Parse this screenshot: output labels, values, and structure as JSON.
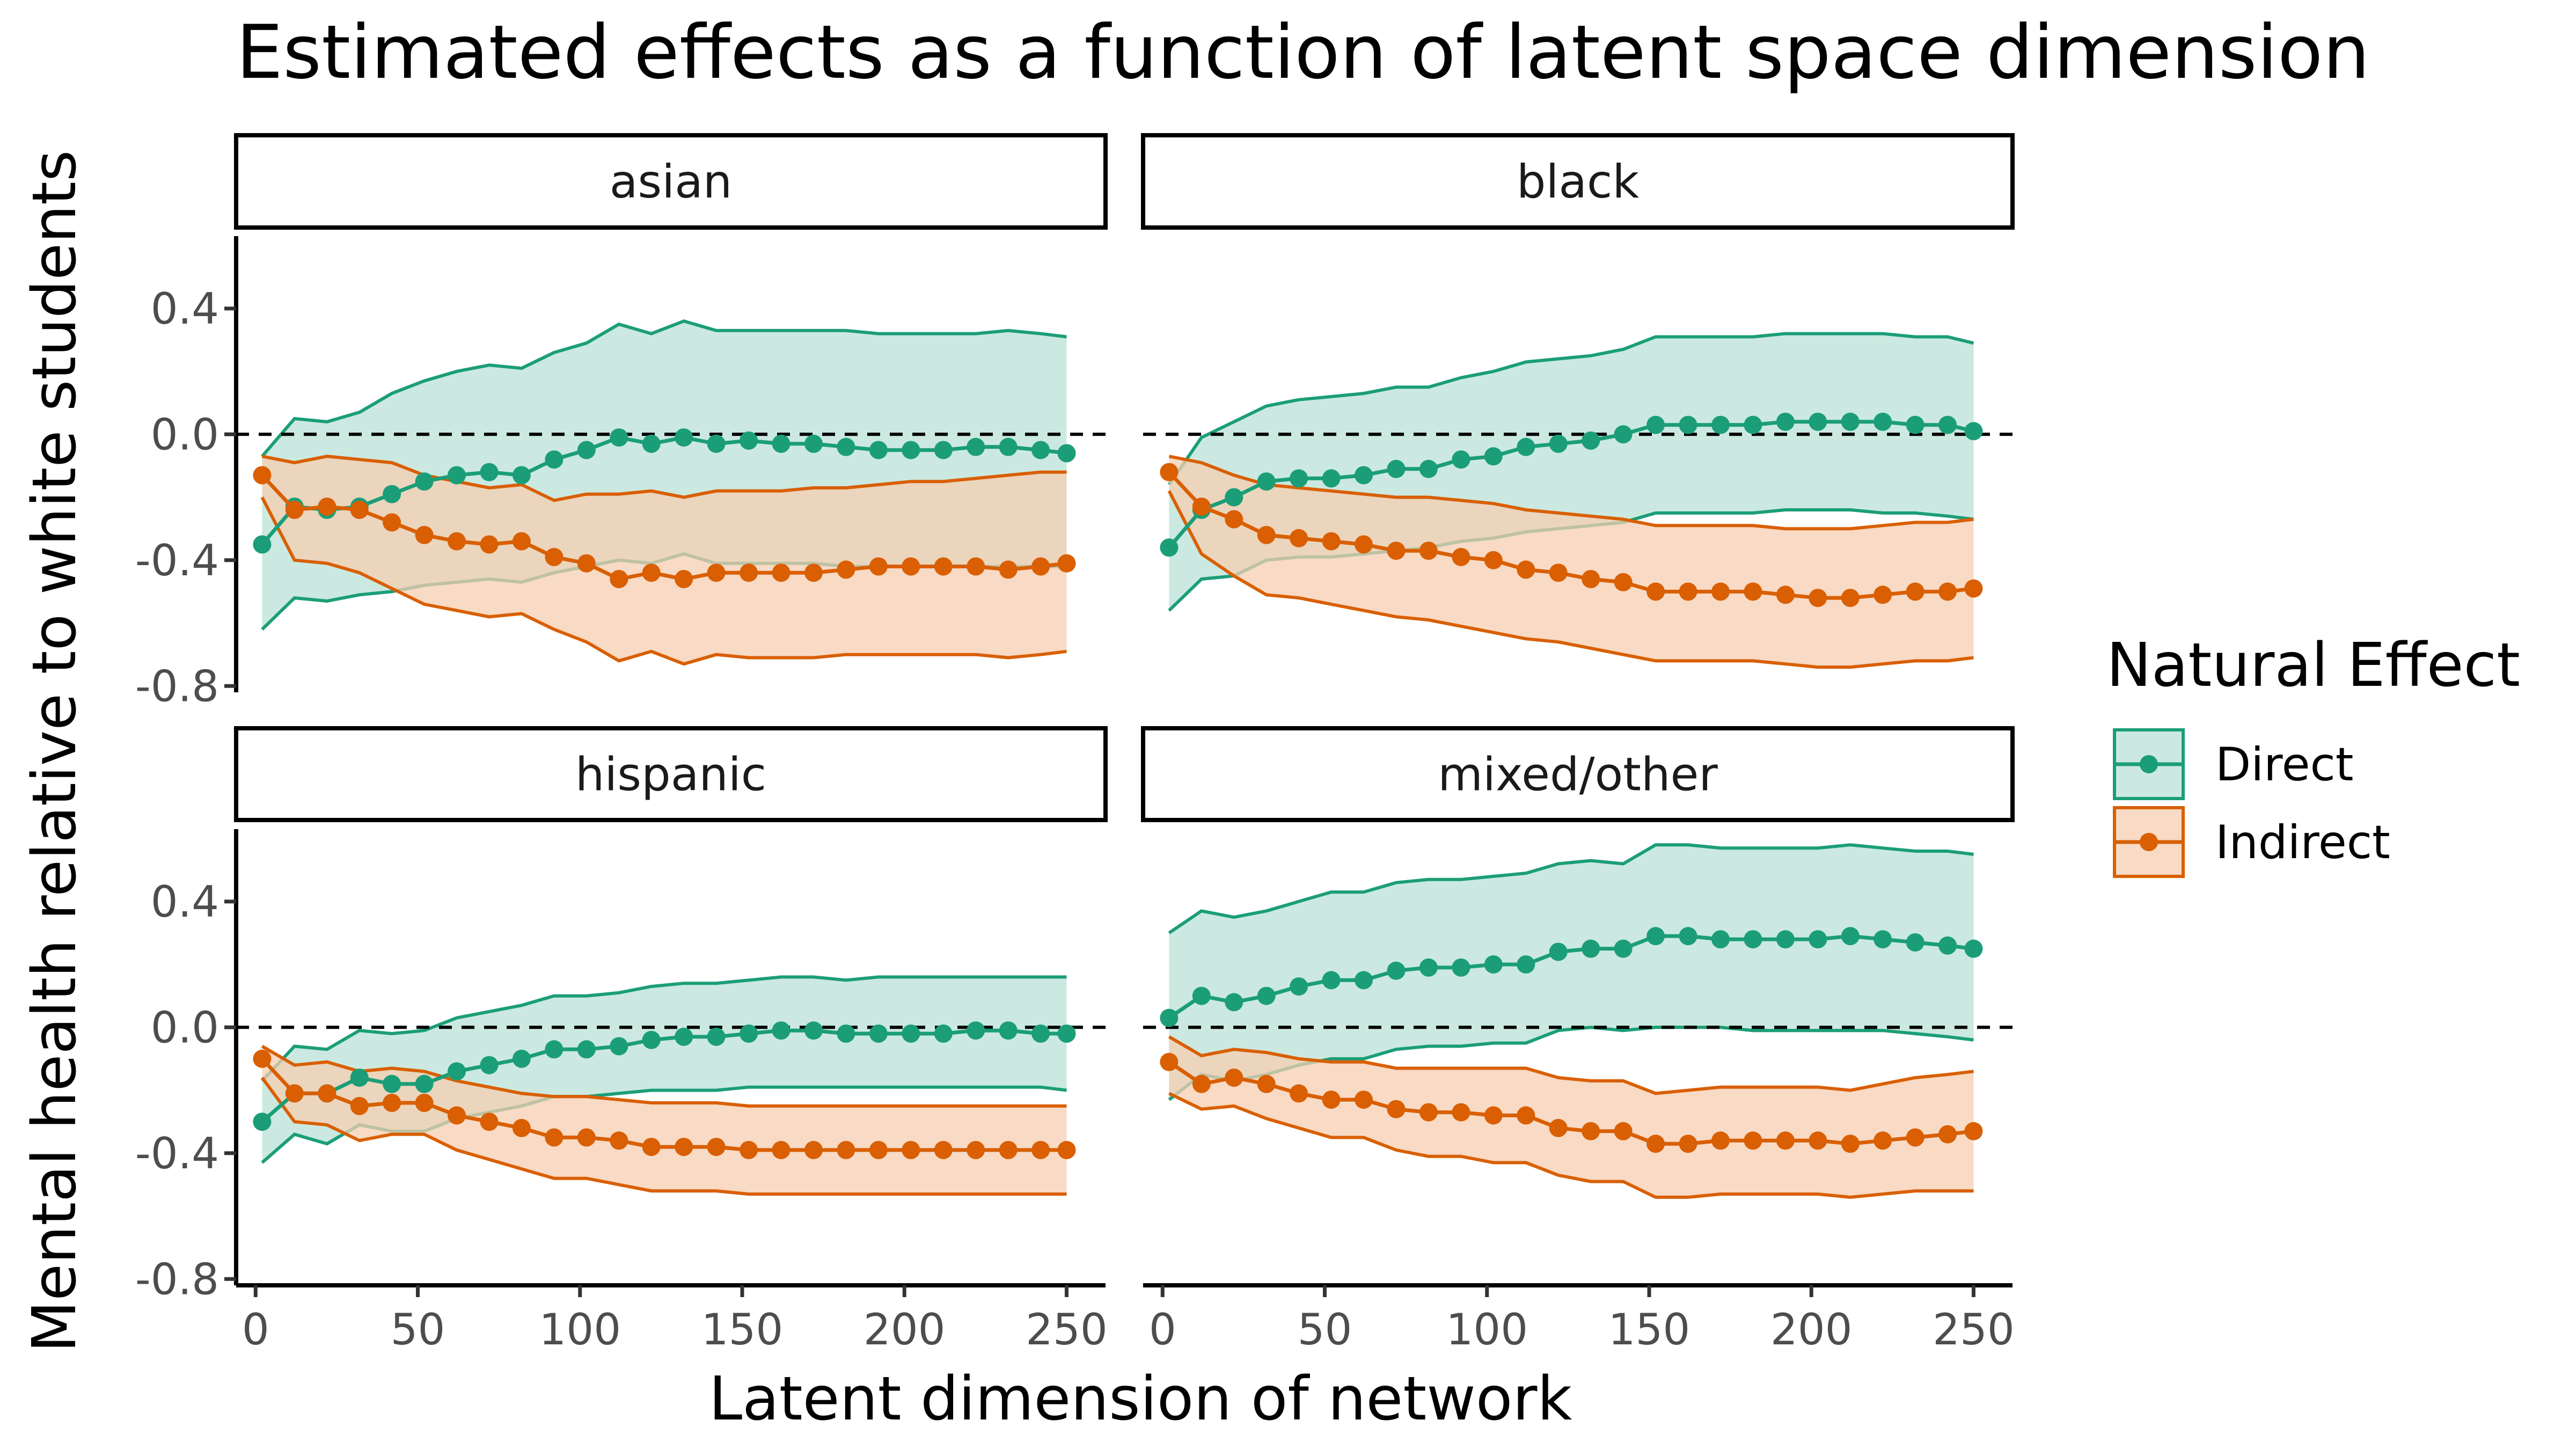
{
  "chart_data": {
    "type": "line",
    "title": "Estimated effects as a function of latent space dimension",
    "xlabel": "Latent dimension of network",
    "ylabel": "Mental health relative to white students",
    "xlim": [
      -6,
      262
    ],
    "ylim": [
      -0.82,
      0.63
    ],
    "x_ticks": [
      0,
      50,
      100,
      150,
      200,
      250
    ],
    "x_tick_labels": [
      "0",
      "50",
      "100",
      "150",
      "200",
      "250"
    ],
    "y_ticks": [
      -0.8,
      -0.4,
      0.0,
      0.4
    ],
    "y_tick_labels": [
      "-0.8",
      "-0.4",
      "0.0",
      "0.4"
    ],
    "reference_line": 0.0,
    "legend": {
      "title": "Natural Effect",
      "placement": "right",
      "entries": [
        "Direct",
        "Indirect"
      ]
    },
    "colors": {
      "Direct": "#1b9e77",
      "Indirect": "#d95f02",
      "Direct_fill": "#b9e2d6",
      "Indirect_fill": "#f5cdb1",
      "reference": "#000000"
    },
    "x": [
      2,
      12,
      22,
      32,
      42,
      52,
      62,
      72,
      82,
      92,
      102,
      112,
      122,
      132,
      142,
      152,
      162,
      172,
      182,
      192,
      202,
      212,
      222,
      232,
      242,
      250
    ],
    "panels": [
      {
        "label": "asian",
        "series": [
          {
            "name": "Direct",
            "values": [
              -0.35,
              -0.23,
              -0.24,
              -0.23,
              -0.19,
              -0.15,
              -0.13,
              -0.12,
              -0.13,
              -0.08,
              -0.05,
              -0.01,
              -0.03,
              -0.01,
              -0.03,
              -0.02,
              -0.03,
              -0.03,
              -0.04,
              -0.05,
              -0.05,
              -0.05,
              -0.04,
              -0.04,
              -0.05,
              -0.06
            ],
            "lower": [
              -0.62,
              -0.52,
              -0.53,
              -0.51,
              -0.5,
              -0.48,
              -0.47,
              -0.46,
              -0.47,
              -0.44,
              -0.42,
              -0.4,
              -0.41,
              -0.38,
              -0.41,
              -0.41,
              -0.41,
              -0.41,
              -0.42,
              -0.42,
              -0.42,
              -0.42,
              -0.42,
              -0.42,
              -0.42,
              -0.42
            ],
            "upper": [
              -0.07,
              0.05,
              0.04,
              0.07,
              0.13,
              0.17,
              0.2,
              0.22,
              0.21,
              0.26,
              0.29,
              0.35,
              0.32,
              0.36,
              0.33,
              0.33,
              0.33,
              0.33,
              0.33,
              0.32,
              0.32,
              0.32,
              0.32,
              0.33,
              0.32,
              0.31
            ]
          },
          {
            "name": "Indirect",
            "values": [
              -0.13,
              -0.24,
              -0.23,
              -0.24,
              -0.28,
              -0.32,
              -0.34,
              -0.35,
              -0.34,
              -0.39,
              -0.41,
              -0.46,
              -0.44,
              -0.46,
              -0.44,
              -0.44,
              -0.44,
              -0.44,
              -0.43,
              -0.42,
              -0.42,
              -0.42,
              -0.42,
              -0.43,
              -0.42,
              -0.41
            ],
            "lower": [
              -0.2,
              -0.4,
              -0.41,
              -0.44,
              -0.49,
              -0.54,
              -0.56,
              -0.58,
              -0.57,
              -0.62,
              -0.66,
              -0.72,
              -0.69,
              -0.73,
              -0.7,
              -0.71,
              -0.71,
              -0.71,
              -0.7,
              -0.7,
              -0.7,
              -0.7,
              -0.7,
              -0.71,
              -0.7,
              -0.69
            ],
            "upper": [
              -0.07,
              -0.09,
              -0.07,
              -0.08,
              -0.09,
              -0.13,
              -0.15,
              -0.17,
              -0.16,
              -0.21,
              -0.19,
              -0.19,
              -0.18,
              -0.2,
              -0.18,
              -0.18,
              -0.18,
              -0.17,
              -0.17,
              -0.16,
              -0.15,
              -0.15,
              -0.14,
              -0.13,
              -0.12,
              -0.12
            ]
          }
        ]
      },
      {
        "label": "black",
        "series": [
          {
            "name": "Direct",
            "values": [
              -0.36,
              -0.24,
              -0.2,
              -0.15,
              -0.14,
              -0.14,
              -0.13,
              -0.11,
              -0.11,
              -0.08,
              -0.07,
              -0.04,
              -0.03,
              -0.02,
              0.0,
              0.03,
              0.03,
              0.03,
              0.03,
              0.04,
              0.04,
              0.04,
              0.04,
              0.03,
              0.03,
              0.01
            ],
            "lower": [
              -0.56,
              -0.46,
              -0.45,
              -0.4,
              -0.39,
              -0.39,
              -0.38,
              -0.37,
              -0.36,
              -0.34,
              -0.33,
              -0.31,
              -0.3,
              -0.29,
              -0.28,
              -0.25,
              -0.25,
              -0.25,
              -0.25,
              -0.24,
              -0.24,
              -0.24,
              -0.25,
              -0.25,
              -0.26,
              -0.27
            ],
            "upper": [
              -0.16,
              -0.01,
              0.04,
              0.09,
              0.11,
              0.12,
              0.13,
              0.15,
              0.15,
              0.18,
              0.2,
              0.23,
              0.24,
              0.25,
              0.27,
              0.31,
              0.31,
              0.31,
              0.31,
              0.32,
              0.32,
              0.32,
              0.32,
              0.31,
              0.31,
              0.29
            ]
          },
          {
            "name": "Indirect",
            "values": [
              -0.12,
              -0.23,
              -0.27,
              -0.32,
              -0.33,
              -0.34,
              -0.35,
              -0.37,
              -0.37,
              -0.39,
              -0.4,
              -0.43,
              -0.44,
              -0.46,
              -0.47,
              -0.5,
              -0.5,
              -0.5,
              -0.5,
              -0.51,
              -0.52,
              -0.52,
              -0.51,
              -0.5,
              -0.5,
              -0.49
            ],
            "lower": [
              -0.18,
              -0.38,
              -0.45,
              -0.51,
              -0.52,
              -0.54,
              -0.56,
              -0.58,
              -0.59,
              -0.61,
              -0.63,
              -0.65,
              -0.66,
              -0.68,
              -0.7,
              -0.72,
              -0.72,
              -0.72,
              -0.72,
              -0.73,
              -0.74,
              -0.74,
              -0.73,
              -0.72,
              -0.72,
              -0.71
            ],
            "upper": [
              -0.07,
              -0.09,
              -0.13,
              -0.16,
              -0.17,
              -0.18,
              -0.19,
              -0.2,
              -0.2,
              -0.21,
              -0.22,
              -0.24,
              -0.25,
              -0.26,
              -0.27,
              -0.29,
              -0.29,
              -0.29,
              -0.29,
              -0.3,
              -0.3,
              -0.3,
              -0.29,
              -0.28,
              -0.28,
              -0.27
            ]
          }
        ]
      },
      {
        "label": "hispanic",
        "series": [
          {
            "name": "Direct",
            "values": [
              -0.3,
              -0.21,
              -0.21,
              -0.16,
              -0.18,
              -0.18,
              -0.14,
              -0.12,
              -0.1,
              -0.07,
              -0.07,
              -0.06,
              -0.04,
              -0.03,
              -0.03,
              -0.02,
              -0.01,
              -0.01,
              -0.02,
              -0.02,
              -0.02,
              -0.02,
              -0.01,
              -0.01,
              -0.02,
              -0.02
            ],
            "lower": [
              -0.43,
              -0.34,
              -0.37,
              -0.31,
              -0.33,
              -0.33,
              -0.29,
              -0.27,
              -0.25,
              -0.22,
              -0.22,
              -0.21,
              -0.2,
              -0.2,
              -0.2,
              -0.19,
              -0.19,
              -0.19,
              -0.19,
              -0.19,
              -0.19,
              -0.19,
              -0.19,
              -0.19,
              -0.19,
              -0.2
            ],
            "upper": [
              -0.17,
              -0.06,
              -0.07,
              -0.01,
              -0.02,
              -0.01,
              0.03,
              0.05,
              0.07,
              0.1,
              0.1,
              0.11,
              0.13,
              0.14,
              0.14,
              0.15,
              0.16,
              0.16,
              0.15,
              0.16,
              0.16,
              0.16,
              0.16,
              0.16,
              0.16,
              0.16
            ]
          },
          {
            "name": "Indirect",
            "values": [
              -0.1,
              -0.21,
              -0.21,
              -0.25,
              -0.24,
              -0.24,
              -0.28,
              -0.3,
              -0.32,
              -0.35,
              -0.35,
              -0.36,
              -0.38,
              -0.38,
              -0.38,
              -0.39,
              -0.39,
              -0.39,
              -0.39,
              -0.39,
              -0.39,
              -0.39,
              -0.39,
              -0.39,
              -0.39,
              -0.39
            ],
            "lower": [
              -0.16,
              -0.3,
              -0.31,
              -0.36,
              -0.34,
              -0.34,
              -0.39,
              -0.42,
              -0.45,
              -0.48,
              -0.48,
              -0.5,
              -0.52,
              -0.52,
              -0.52,
              -0.53,
              -0.53,
              -0.53,
              -0.53,
              -0.53,
              -0.53,
              -0.53,
              -0.53,
              -0.53,
              -0.53,
              -0.53
            ],
            "upper": [
              -0.06,
              -0.12,
              -0.11,
              -0.14,
              -0.13,
              -0.14,
              -0.17,
              -0.19,
              -0.21,
              -0.22,
              -0.22,
              -0.23,
              -0.24,
              -0.24,
              -0.24,
              -0.25,
              -0.25,
              -0.25,
              -0.25,
              -0.25,
              -0.25,
              -0.25,
              -0.25,
              -0.25,
              -0.25,
              -0.25
            ]
          }
        ]
      },
      {
        "label": "mixed/other",
        "series": [
          {
            "name": "Direct",
            "values": [
              0.03,
              0.1,
              0.08,
              0.1,
              0.13,
              0.15,
              0.15,
              0.18,
              0.19,
              0.19,
              0.2,
              0.2,
              0.24,
              0.25,
              0.25,
              0.29,
              0.29,
              0.28,
              0.28,
              0.28,
              0.28,
              0.29,
              0.28,
              0.27,
              0.26,
              0.25
            ],
            "lower": [
              -0.23,
              -0.15,
              -0.17,
              -0.15,
              -0.12,
              -0.1,
              -0.1,
              -0.07,
              -0.06,
              -0.06,
              -0.05,
              -0.05,
              -0.01,
              0.0,
              -0.01,
              0.0,
              0.0,
              0.0,
              -0.01,
              -0.01,
              -0.01,
              -0.01,
              -0.01,
              -0.02,
              -0.03,
              -0.04
            ],
            "upper": [
              0.3,
              0.37,
              0.35,
              0.37,
              0.4,
              0.43,
              0.43,
              0.46,
              0.47,
              0.47,
              0.48,
              0.49,
              0.52,
              0.53,
              0.52,
              0.58,
              0.58,
              0.57,
              0.57,
              0.57,
              0.57,
              0.58,
              0.57,
              0.56,
              0.56,
              0.55
            ]
          },
          {
            "name": "Indirect",
            "values": [
              -0.11,
              -0.18,
              -0.16,
              -0.18,
              -0.21,
              -0.23,
              -0.23,
              -0.26,
              -0.27,
              -0.27,
              -0.28,
              -0.28,
              -0.32,
              -0.33,
              -0.33,
              -0.37,
              -0.37,
              -0.36,
              -0.36,
              -0.36,
              -0.36,
              -0.37,
              -0.36,
              -0.35,
              -0.34,
              -0.33
            ],
            "lower": [
              -0.21,
              -0.26,
              -0.25,
              -0.29,
              -0.32,
              -0.35,
              -0.35,
              -0.39,
              -0.41,
              -0.41,
              -0.43,
              -0.43,
              -0.47,
              -0.49,
              -0.49,
              -0.54,
              -0.54,
              -0.53,
              -0.53,
              -0.53,
              -0.53,
              -0.54,
              -0.53,
              -0.52,
              -0.52,
              -0.52
            ],
            "upper": [
              -0.03,
              -0.09,
              -0.07,
              -0.08,
              -0.1,
              -0.11,
              -0.11,
              -0.13,
              -0.13,
              -0.13,
              -0.13,
              -0.13,
              -0.16,
              -0.17,
              -0.17,
              -0.21,
              -0.2,
              -0.19,
              -0.19,
              -0.19,
              -0.19,
              -0.2,
              -0.18,
              -0.16,
              -0.15,
              -0.14
            ]
          }
        ]
      }
    ]
  }
}
